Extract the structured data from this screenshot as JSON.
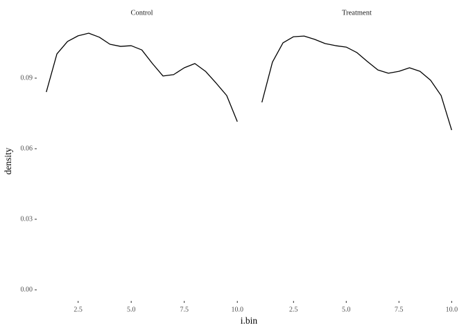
{
  "chart_data": {
    "type": "line",
    "xlabel": "i.bin",
    "ylabel": "density",
    "color": "#000000",
    "x": [
      1,
      1.5,
      2,
      2.5,
      3,
      3.5,
      4,
      4.5,
      5,
      5.5,
      6,
      6.5,
      7,
      7.5,
      8,
      8.5,
      9,
      9.5,
      10
    ],
    "facets": [
      {
        "title": "Control",
        "values": [
          0.0841,
          0.1003,
          0.1056,
          0.108,
          0.1091,
          0.1074,
          0.1044,
          0.1035,
          0.1038,
          0.102,
          0.0962,
          0.0909,
          0.0915,
          0.0944,
          0.0962,
          0.0929,
          0.0879,
          0.0826,
          0.0715
        ]
      },
      {
        "title": "Treatment",
        "values": [
          0.0797,
          0.0968,
          0.105,
          0.1076,
          0.1079,
          0.1065,
          0.1047,
          0.1038,
          0.1032,
          0.1009,
          0.0971,
          0.0935,
          0.0921,
          0.0929,
          0.0944,
          0.0929,
          0.0891,
          0.0826,
          0.0679
        ]
      }
    ],
    "xlim": [
      0.55,
      10.45
    ],
    "ylim": [
      -0.0047,
      0.1144
    ],
    "xticks": [
      2.5,
      {
        "value": 5,
        "label": "5.0"
      },
      7.5,
      {
        "value": 10,
        "label": "10.0"
      }
    ],
    "yticks": [
      {
        "value": 0,
        "label": "0.00"
      },
      {
        "value": 0.03,
        "label": "0.03"
      },
      {
        "value": 0.06,
        "label": "0.06"
      },
      {
        "value": 0.09,
        "label": "0.09"
      }
    ]
  }
}
